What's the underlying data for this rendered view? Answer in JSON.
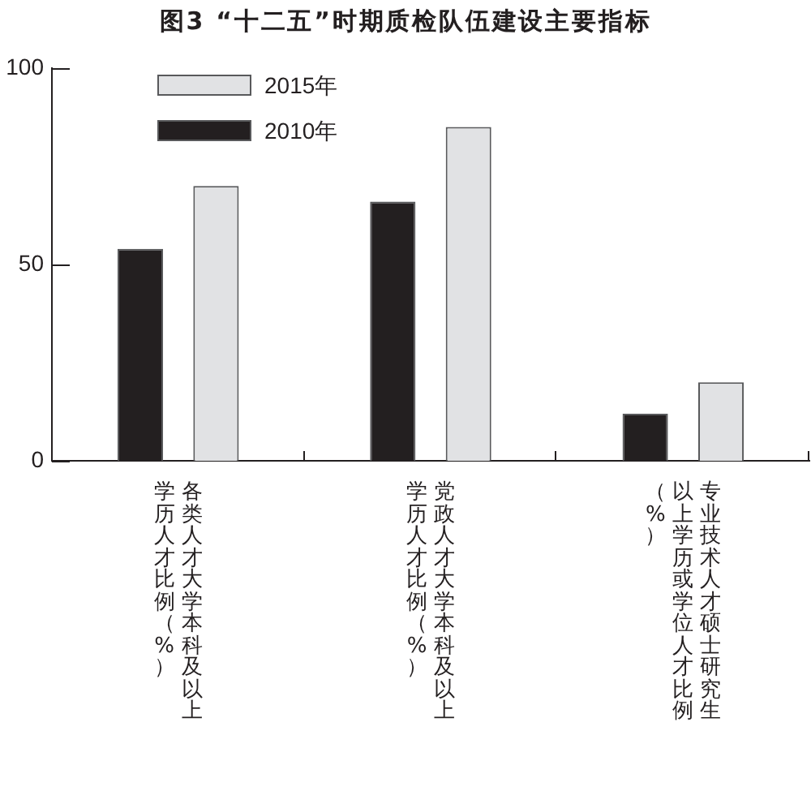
{
  "chart_data": {
    "type": "bar",
    "title": "图3 “十二五”时期质检队伍建设主要指标",
    "categories": [
      "各类人才大学本科及以上学历人才比例（%）",
      "党政人才大学本科及以上学历人才比例（%）",
      "专业技术人才硕士研究生以上学历或学位人才比例（%）"
    ],
    "series": [
      {
        "name": "2010年",
        "color": "#231f20",
        "values": [
          54,
          66,
          12
        ]
      },
      {
        "name": "2015年",
        "color": "#e1e2e4",
        "values": [
          70,
          85,
          20
        ]
      }
    ],
    "ylim": [
      0,
      100
    ],
    "yticks": [
      0,
      50,
      100
    ],
    "grid": false,
    "legend": "top left"
  }
}
